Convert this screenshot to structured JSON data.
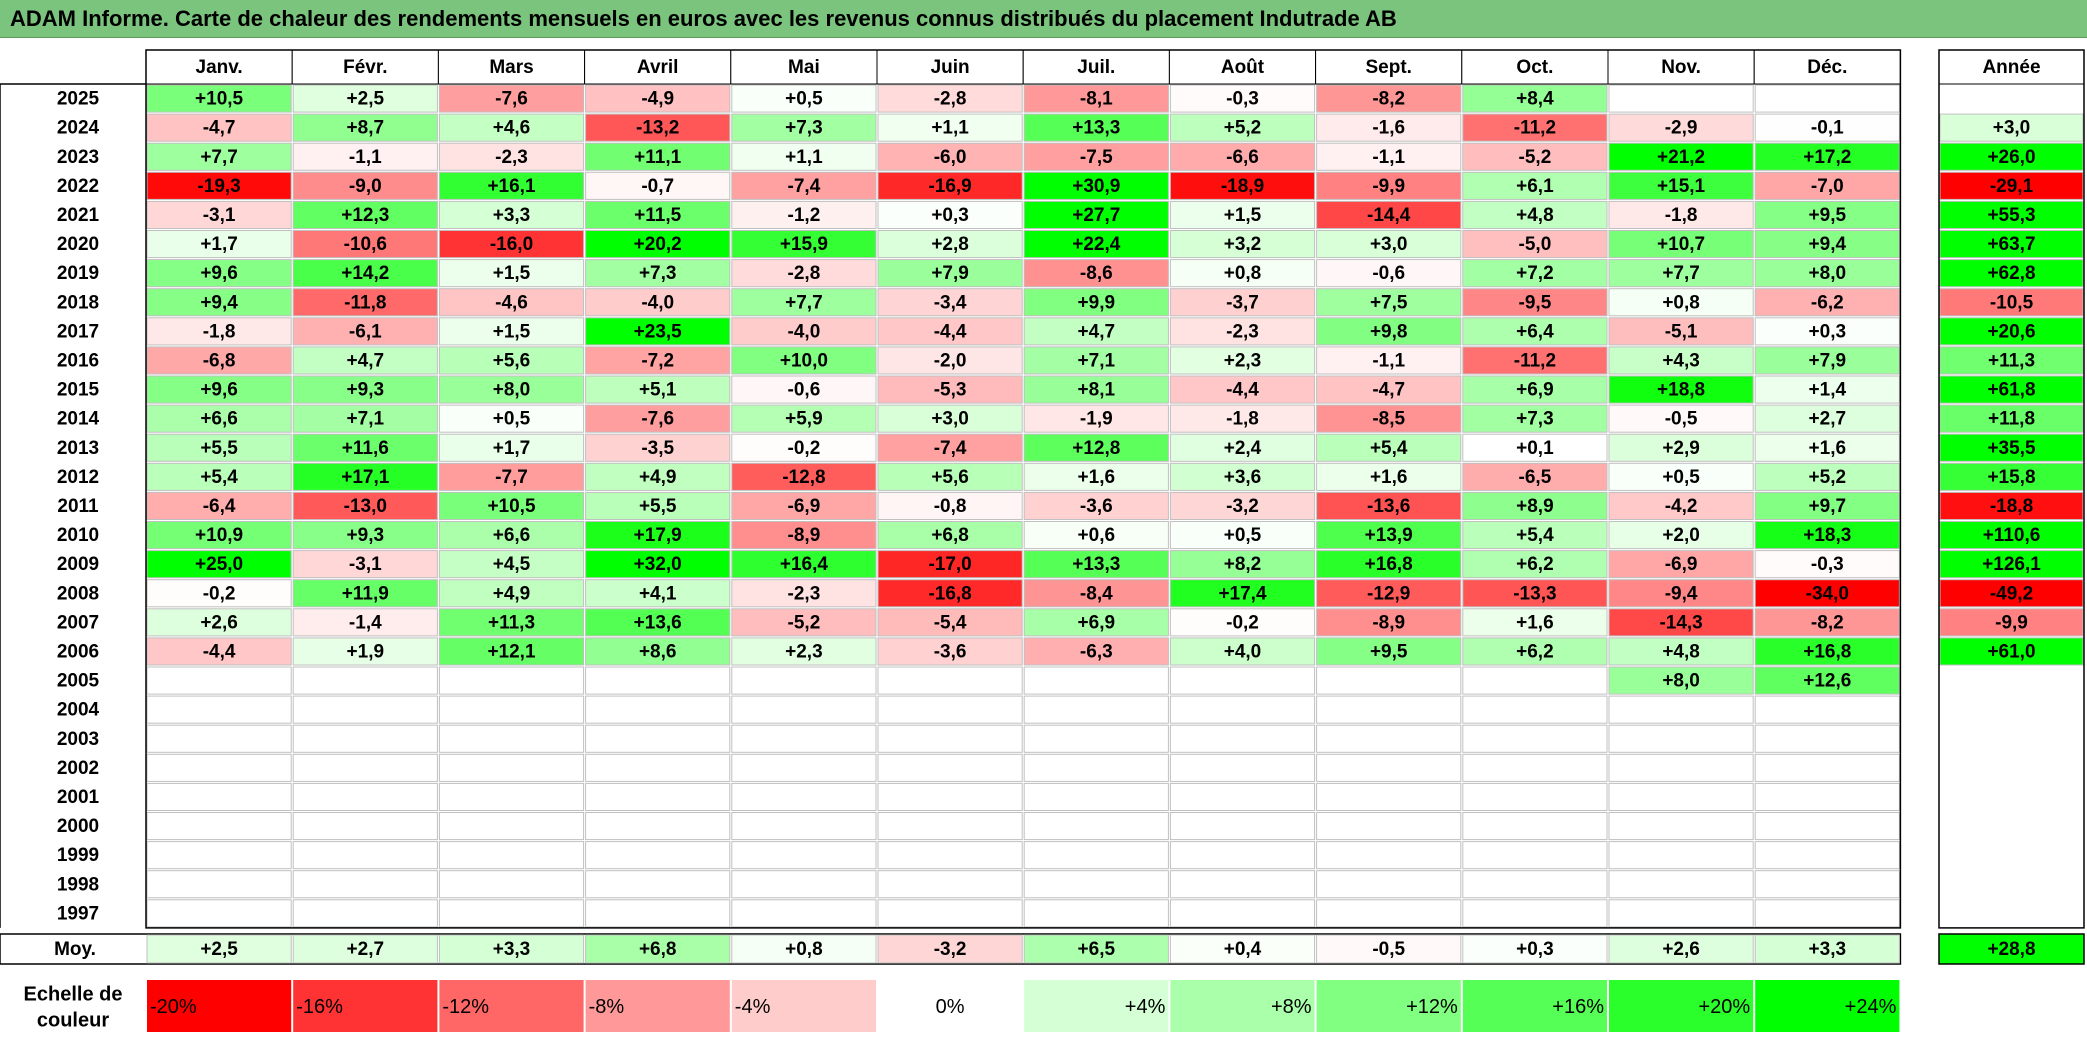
{
  "title": "ADAM Informe. Carte de chaleur des rendements mensuels en euros avec les revenus connus distribués du placement Indutrade AB",
  "chart_data": {
    "type": "heatmap",
    "title": "ADAM Informe. Carte de chaleur des rendements mensuels en euros avec les revenus connus distribués du placement Indutrade AB",
    "months": [
      "Janv.",
      "Févr.",
      "Mars",
      "Avril",
      "Mai",
      "Juin",
      "Juil.",
      "Août",
      "Sept.",
      "Oct.",
      "Nov.",
      "Déc."
    ],
    "year_header": "Année",
    "rows": [
      {
        "year": "2025",
        "values": [
          "+10,5",
          "+2,5",
          "-7,6",
          "-4,9",
          "+0,5",
          "-2,8",
          "-8,1",
          "-0,3",
          "-8,2",
          "+8,4",
          "",
          ""
        ],
        "annual": ""
      },
      {
        "year": "2024",
        "values": [
          "-4,7",
          "+8,7",
          "+4,6",
          "-13,2",
          "+7,3",
          "+1,1",
          "+13,3",
          "+5,2",
          "-1,6",
          "-11,2",
          "-2,9",
          "-0,1"
        ],
        "annual": "+3,0"
      },
      {
        "year": "2023",
        "values": [
          "+7,7",
          "-1,1",
          "-2,3",
          "+11,1",
          "+1,1",
          "-6,0",
          "-7,5",
          "-6,6",
          "-1,1",
          "-5,2",
          "+21,2",
          "+17,2"
        ],
        "annual": "+26,0"
      },
      {
        "year": "2022",
        "values": [
          "-19,3",
          "-9,0",
          "+16,1",
          "-0,7",
          "-7,4",
          "-16,9",
          "+30,9",
          "-18,9",
          "-9,9",
          "+6,1",
          "+15,1",
          "-7,0"
        ],
        "annual": "-29,1"
      },
      {
        "year": "2021",
        "values": [
          "-3,1",
          "+12,3",
          "+3,3",
          "+11,5",
          "-1,2",
          "+0,3",
          "+27,7",
          "+1,5",
          "-14,4",
          "+4,8",
          "-1,8",
          "+9,5"
        ],
        "annual": "+55,3"
      },
      {
        "year": "2020",
        "values": [
          "+1,7",
          "-10,6",
          "-16,0",
          "+20,2",
          "+15,9",
          "+2,8",
          "+22,4",
          "+3,2",
          "+3,0",
          "-5,0",
          "+10,7",
          "+9,4"
        ],
        "annual": "+63,7"
      },
      {
        "year": "2019",
        "values": [
          "+9,6",
          "+14,2",
          "+1,5",
          "+7,3",
          "-2,8",
          "+7,9",
          "-8,6",
          "+0,8",
          "-0,6",
          "+7,2",
          "+7,7",
          "+8,0"
        ],
        "annual": "+62,8"
      },
      {
        "year": "2018",
        "values": [
          "+9,4",
          "-11,8",
          "-4,6",
          "-4,0",
          "+7,7",
          "-3,4",
          "+9,9",
          "-3,7",
          "+7,5",
          "-9,5",
          "+0,8",
          "-6,2"
        ],
        "annual": "-10,5"
      },
      {
        "year": "2017",
        "values": [
          "-1,8",
          "-6,1",
          "+1,5",
          "+23,5",
          "-4,0",
          "-4,4",
          "+4,7",
          "-2,3",
          "+9,8",
          "+6,4",
          "-5,1",
          "+0,3"
        ],
        "annual": "+20,6"
      },
      {
        "year": "2016",
        "values": [
          "-6,8",
          "+4,7",
          "+5,6",
          "-7,2",
          "+10,0",
          "-2,0",
          "+7,1",
          "+2,3",
          "-1,1",
          "-11,2",
          "+4,3",
          "+7,9"
        ],
        "annual": "+11,3"
      },
      {
        "year": "2015",
        "values": [
          "+9,6",
          "+9,3",
          "+8,0",
          "+5,1",
          "-0,6",
          "-5,3",
          "+8,1",
          "-4,4",
          "-4,7",
          "+6,9",
          "+18,8",
          "+1,4"
        ],
        "annual": "+61,8"
      },
      {
        "year": "2014",
        "values": [
          "+6,6",
          "+7,1",
          "+0,5",
          "-7,6",
          "+5,9",
          "+3,0",
          "-1,9",
          "-1,8",
          "-8,5",
          "+7,3",
          "-0,5",
          "+2,7"
        ],
        "annual": "+11,8"
      },
      {
        "year": "2013",
        "values": [
          "+5,5",
          "+11,6",
          "+1,7",
          "-3,5",
          "-0,2",
          "-7,4",
          "+12,8",
          "+2,4",
          "+5,4",
          "+0,1",
          "+2,9",
          "+1,6"
        ],
        "annual": "+35,5"
      },
      {
        "year": "2012",
        "values": [
          "+5,4",
          "+17,1",
          "-7,7",
          "+4,9",
          "-12,8",
          "+5,6",
          "+1,6",
          "+3,6",
          "+1,6",
          "-6,5",
          "+0,5",
          "+5,2"
        ],
        "annual": "+15,8"
      },
      {
        "year": "2011",
        "values": [
          "-6,4",
          "-13,0",
          "+10,5",
          "+5,5",
          "-6,9",
          "-0,8",
          "-3,6",
          "-3,2",
          "-13,6",
          "+8,9",
          "-4,2",
          "+9,7"
        ],
        "annual": "-18,8"
      },
      {
        "year": "2010",
        "values": [
          "+10,9",
          "+9,3",
          "+6,6",
          "+17,9",
          "-8,9",
          "+6,8",
          "+0,6",
          "+0,5",
          "+13,9",
          "+5,4",
          "+2,0",
          "+18,3"
        ],
        "annual": "+110,6"
      },
      {
        "year": "2009",
        "values": [
          "+25,0",
          "-3,1",
          "+4,5",
          "+32,0",
          "+16,4",
          "-17,0",
          "+13,3",
          "+8,2",
          "+16,8",
          "+6,2",
          "-6,9",
          "-0,3"
        ],
        "annual": "+126,1"
      },
      {
        "year": "2008",
        "values": [
          "-0,2",
          "+11,9",
          "+4,9",
          "+4,1",
          "-2,3",
          "-16,8",
          "-8,4",
          "+17,4",
          "-12,9",
          "-13,3",
          "-9,4",
          "-34,0"
        ],
        "annual": "-49,2"
      },
      {
        "year": "2007",
        "values": [
          "+2,6",
          "-1,4",
          "+11,3",
          "+13,6",
          "-5,2",
          "-5,4",
          "+6,9",
          "-0,2",
          "-8,9",
          "+1,6",
          "-14,3",
          "-8,2"
        ],
        "annual": "-9,9"
      },
      {
        "year": "2006",
        "values": [
          "-4,4",
          "+1,9",
          "+12,1",
          "+8,6",
          "+2,3",
          "-3,6",
          "-6,3",
          "+4,0",
          "+9,5",
          "+6,2",
          "+4,8",
          "+16,8"
        ],
        "annual": "+61,0"
      },
      {
        "year": "2005",
        "values": [
          "",
          "",
          "",
          "",
          "",
          "",
          "",
          "",
          "",
          "",
          "+8,0",
          "+12,6"
        ],
        "annual": ""
      },
      {
        "year": "2004",
        "values": [
          "",
          "",
          "",
          "",
          "",
          "",
          "",
          "",
          "",
          "",
          "",
          ""
        ],
        "annual": ""
      },
      {
        "year": "2003",
        "values": [
          "",
          "",
          "",
          "",
          "",
          "",
          "",
          "",
          "",
          "",
          "",
          ""
        ],
        "annual": ""
      },
      {
        "year": "2002",
        "values": [
          "",
          "",
          "",
          "",
          "",
          "",
          "",
          "",
          "",
          "",
          "",
          ""
        ],
        "annual": ""
      },
      {
        "year": "2001",
        "values": [
          "",
          "",
          "",
          "",
          "",
          "",
          "",
          "",
          "",
          "",
          "",
          ""
        ],
        "annual": ""
      },
      {
        "year": "2000",
        "values": [
          "",
          "",
          "",
          "",
          "",
          "",
          "",
          "",
          "",
          "",
          "",
          ""
        ],
        "annual": ""
      },
      {
        "year": "1999",
        "values": [
          "",
          "",
          "",
          "",
          "",
          "",
          "",
          "",
          "",
          "",
          "",
          ""
        ],
        "annual": ""
      },
      {
        "year": "1998",
        "values": [
          "",
          "",
          "",
          "",
          "",
          "",
          "",
          "",
          "",
          "",
          "",
          ""
        ],
        "annual": ""
      },
      {
        "year": "1997",
        "values": [
          "",
          "",
          "",
          "",
          "",
          "",
          "",
          "",
          "",
          "",
          "",
          ""
        ],
        "annual": ""
      }
    ],
    "average": {
      "label": "Moy.",
      "values": [
        "+2,5",
        "+2,7",
        "+3,3",
        "+6,8",
        "+0,8",
        "-3,2",
        "+6,5",
        "+0,4",
        "-0,5",
        "+0,3",
        "+2,6",
        "+3,3"
      ],
      "annual": "+28,8"
    },
    "color_scale": {
      "label_line1": "Echelle de",
      "label_line2": "couleur",
      "steps": [
        {
          "label": "-20%",
          "value": -20,
          "color": "#ff0000"
        },
        {
          "label": "-16%",
          "value": -16,
          "color": "#ff3333"
        },
        {
          "label": "-12%",
          "value": -12,
          "color": "#ff6666"
        },
        {
          "label": "-8%",
          "value": -8,
          "color": "#ff9999"
        },
        {
          "label": "-4%",
          "value": -4,
          "color": "#ffcccc"
        },
        {
          "label": "0%",
          "value": 0,
          "color": "#ffffff"
        },
        {
          "label": "+4%",
          "value": 4,
          "color": "#d5ffd5"
        },
        {
          "label": "+8%",
          "value": 8,
          "color": "#aaffaa"
        },
        {
          "label": "+12%",
          "value": 12,
          "color": "#80ff80"
        },
        {
          "label": "+16%",
          "value": 16,
          "color": "#55ff55"
        },
        {
          "label": "+20%",
          "value": 20,
          "color": "#2bff2b"
        },
        {
          "label": "+24%",
          "value": 24,
          "color": "#00ff00"
        }
      ]
    }
  }
}
